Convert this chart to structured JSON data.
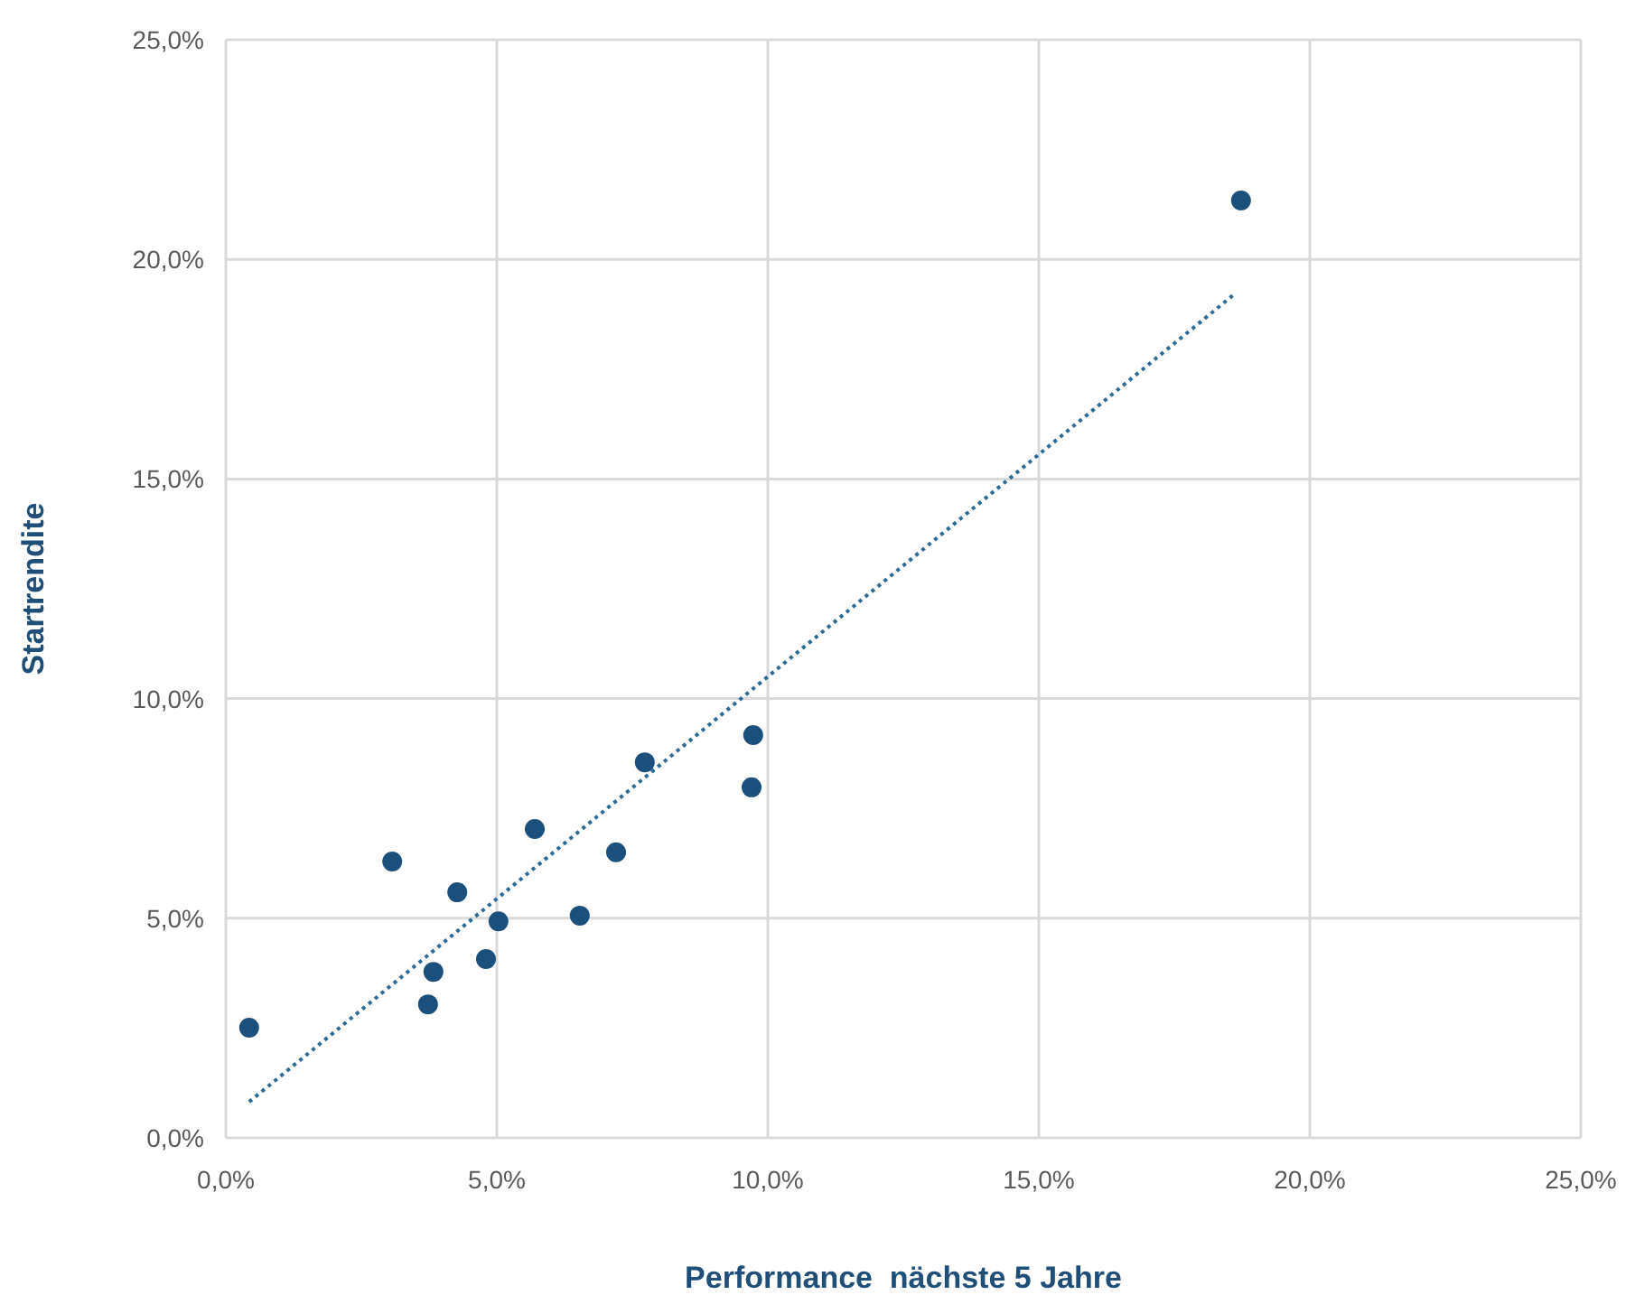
{
  "chart_data": {
    "type": "scatter",
    "xlabel": "Performance  nächste 5 Jahre",
    "ylabel": "Startrendite",
    "xlim": [
      0,
      25
    ],
    "ylim": [
      0,
      25
    ],
    "xticks": [
      {
        "value": 0,
        "label": "0,0%"
      },
      {
        "value": 5,
        "label": "5,0%"
      },
      {
        "value": 10,
        "label": "10,0%"
      },
      {
        "value": 15,
        "label": "15,0%"
      },
      {
        "value": 20,
        "label": "20,0%"
      },
      {
        "value": 25,
        "label": "25,0%"
      }
    ],
    "yticks": [
      {
        "value": 0,
        "label": "0,0%"
      },
      {
        "value": 5,
        "label": "5,0%"
      },
      {
        "value": 10,
        "label": "10,0%"
      },
      {
        "value": 15,
        "label": "15,0%"
      },
      {
        "value": 20,
        "label": "20,0%"
      },
      {
        "value": 25,
        "label": "25,0%"
      }
    ],
    "grid": true,
    "marker": "circle",
    "series": [
      {
        "color": "#1b4f7c",
        "x": [
          0.43,
          3.07,
          4.27,
          3.83,
          3.73,
          4.8,
          5.03,
          5.7,
          6.53,
          7.2,
          7.73,
          9.7,
          9.73,
          18.73
        ],
        "values": [
          2.51,
          6.29,
          5.59,
          3.78,
          3.04,
          4.07,
          4.93,
          7.03,
          5.06,
          6.5,
          8.55,
          7.98,
          9.17,
          21.34
        ]
      },
      {
        "type": "line",
        "color": "#2e6a96",
        "line_style": "dotted",
        "marker": "none",
        "x": [
          0.43,
          18.6
        ],
        "values": [
          0.82,
          19.2
        ]
      }
    ]
  }
}
